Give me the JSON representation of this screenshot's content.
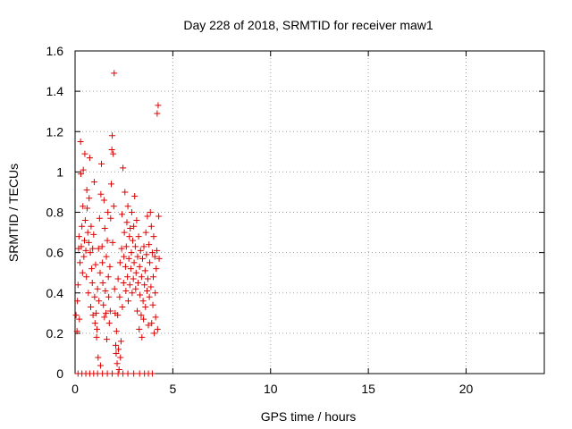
{
  "chart_data": {
    "type": "scatter",
    "title": "Day 228 of 2018, SRMTID for receiver maw1",
    "xlabel": "GPS time / hours",
    "ylabel": "SRMTID / TECUs",
    "xlim": [
      0,
      24
    ],
    "ylim": [
      0,
      1.6
    ],
    "xticks": [
      0,
      5,
      10,
      15,
      20
    ],
    "xtick_labels": [
      "0",
      "5",
      "10",
      "15",
      "20"
    ],
    "yticks": [
      0,
      0.2,
      0.4,
      0.6,
      0.8,
      1,
      1.2,
      1.4,
      1.6
    ],
    "ytick_labels": [
      "0",
      "0.2",
      "0.4",
      "0.6",
      "0.8",
      "1",
      "1.2",
      "1.4",
      "1.6"
    ],
    "grid": true,
    "marker": "+",
    "marker_color": "#dd0000",
    "points": [
      [
        0.05,
        0.29
      ],
      [
        0.1,
        0.21
      ],
      [
        0.12,
        0.36
      ],
      [
        0.15,
        0.44
      ],
      [
        0.18,
        0.62
      ],
      [
        0.2,
        0.68
      ],
      [
        0.22,
        0.27
      ],
      [
        0.25,
        0.55
      ],
      [
        0.28,
        1.15
      ],
      [
        0.3,
        0.99
      ],
      [
        0.32,
        0.63
      ],
      [
        0.35,
        0.73
      ],
      [
        0.38,
        0.5
      ],
      [
        0.4,
        0.83
      ],
      [
        0.42,
        1.01
      ],
      [
        0.45,
        0.58
      ],
      [
        0.48,
        0.66
      ],
      [
        0.5,
        1.09
      ],
      [
        0.52,
        0.76
      ],
      [
        0.55,
        0.61
      ],
      [
        0.58,
        0.48
      ],
      [
        0.6,
        0.91
      ],
      [
        0.62,
        0.82
      ],
      [
        0.65,
        0.7
      ],
      [
        0.68,
        0.4
      ],
      [
        0.7,
        0.65
      ],
      [
        0.72,
        0.87
      ],
      [
        0.75,
        1.07
      ],
      [
        0.78,
        0.6
      ],
      [
        0.8,
        0.33
      ],
      [
        0.82,
        0.73
      ],
      [
        0.85,
        0.52
      ],
      [
        0.88,
        0.45
      ],
      [
        0.9,
        0.62
      ],
      [
        0.92,
        0.29
      ],
      [
        0.95,
        0.69
      ],
      [
        0.98,
        0.95
      ],
      [
        1.0,
        0.38
      ],
      [
        1.02,
        0.25
      ],
      [
        1.05,
        0.54
      ],
      [
        1.08,
        0.3
      ],
      [
        1.1,
        0.18
      ],
      [
        1.12,
        0.22
      ],
      [
        1.15,
        0.42
      ],
      [
        1.18,
        0.08
      ],
      [
        1.2,
        0.62
      ],
      [
        1.22,
        0.36
      ],
      [
        1.25,
        0.77
      ],
      [
        1.28,
        0.5
      ],
      [
        1.3,
        0.04
      ],
      [
        1.32,
        0.89
      ],
      [
        1.35,
        1.04
      ],
      [
        1.38,
        0.63
      ],
      [
        1.4,
        0.55
      ],
      [
        1.42,
        0.45
      ],
      [
        1.45,
        0.34
      ],
      [
        1.48,
        0.86
      ],
      [
        1.5,
        0.28
      ],
      [
        1.52,
        0.72
      ],
      [
        1.55,
        0.41
      ],
      [
        1.58,
        0.3
      ],
      [
        1.6,
        0.58
      ],
      [
        1.62,
        0.17
      ],
      [
        1.65,
        0.66
      ],
      [
        1.68,
        0.8
      ],
      [
        1.7,
        0.48
      ],
      [
        1.72,
        0.38
      ],
      [
        1.75,
        0.25
      ],
      [
        1.78,
        0.53
      ],
      [
        1.8,
        0.31
      ],
      [
        1.82,
        0.77
      ],
      [
        1.85,
        0.94
      ],
      [
        1.88,
        1.11
      ],
      [
        1.9,
        1.18
      ],
      [
        1.92,
        0.65
      ],
      [
        1.95,
        1.09
      ],
      [
        1.98,
        0.83
      ],
      [
        2.0,
        1.49
      ],
      [
        2.02,
        0.42
      ],
      [
        2.05,
        0.3
      ],
      [
        2.08,
        0.14
      ],
      [
        2.1,
        0.1
      ],
      [
        2.12,
        0.21
      ],
      [
        2.15,
        0.05
      ],
      [
        2.18,
        0.29
      ],
      [
        2.2,
        0.47
      ],
      [
        2.22,
        0.12
      ],
      [
        2.25,
        0.02
      ],
      [
        2.28,
        0.38
      ],
      [
        2.3,
        0.55
      ],
      [
        2.32,
        0.08
      ],
      [
        2.35,
        0.16
      ],
      [
        2.38,
        0.62
      ],
      [
        2.4,
        0.79
      ],
      [
        2.42,
        0.33
      ],
      [
        2.45,
        1.02
      ],
      [
        2.48,
        0.45
      ],
      [
        2.5,
        0.58
      ],
      [
        2.52,
        0.7
      ],
      [
        2.55,
        0.9
      ],
      [
        2.58,
        0.53
      ],
      [
        2.6,
        0.41
      ],
      [
        2.62,
        0.63
      ],
      [
        2.65,
        0.75
      ],
      [
        2.68,
        0.48
      ],
      [
        2.7,
        0.83
      ],
      [
        2.72,
        0.36
      ],
      [
        2.75,
        0.57
      ],
      [
        2.78,
        0.68
      ],
      [
        2.8,
        0.44
      ],
      [
        2.82,
        0.72
      ],
      [
        2.85,
        0.52
      ],
      [
        2.88,
        0.6
      ],
      [
        2.9,
        0.8
      ],
      [
        2.92,
        0.4
      ],
      [
        2.95,
        0.66
      ],
      [
        2.98,
        0.47
      ],
      [
        3.0,
        0.73
      ],
      [
        3.02,
        0.55
      ],
      [
        3.05,
        0.88
      ],
      [
        3.08,
        0.63
      ],
      [
        3.1,
        0.42
      ],
      [
        3.12,
        0.5
      ],
      [
        3.15,
        0.76
      ],
      [
        3.18,
        0.31
      ],
      [
        3.2,
        0.58
      ],
      [
        3.22,
        0.45
      ],
      [
        3.25,
        0.68
      ],
      [
        3.28,
        0.22
      ],
      [
        3.3,
        0.53
      ],
      [
        3.32,
        0.39
      ],
      [
        3.35,
        0.61
      ],
      [
        3.38,
        0.29
      ],
      [
        3.4,
        0.48
      ],
      [
        3.42,
        0.18
      ],
      [
        3.45,
        0.57
      ],
      [
        3.48,
        0.36
      ],
      [
        3.5,
        0.27
      ],
      [
        3.52,
        0.63
      ],
      [
        3.55,
        0.44
      ],
      [
        3.58,
        0.51
      ],
      [
        3.6,
        0.33
      ],
      [
        3.62,
        0.7
      ],
      [
        3.65,
        0.59
      ],
      [
        3.68,
        0.41
      ],
      [
        3.7,
        0.78
      ],
      [
        3.72,
        0.47
      ],
      [
        3.75,
        0.24
      ],
      [
        3.78,
        0.64
      ],
      [
        3.8,
        0.38
      ],
      [
        3.82,
        0.55
      ],
      [
        3.85,
        0.8
      ],
      [
        3.88,
        0.43
      ],
      [
        3.9,
        0.73
      ],
      [
        3.92,
        0.25
      ],
      [
        3.95,
        0.6
      ],
      [
        3.98,
        0.34
      ],
      [
        4.0,
        0.48
      ],
      [
        4.02,
        0.68
      ],
      [
        4.05,
        0.2
      ],
      [
        4.08,
        0.58
      ],
      [
        4.1,
        0.4
      ],
      [
        4.12,
        0.28
      ],
      [
        4.15,
        0.52
      ],
      [
        4.18,
        0.61
      ],
      [
        4.2,
        1.29
      ],
      [
        4.22,
        0.22
      ],
      [
        4.25,
        1.33
      ],
      [
        4.28,
        0.78
      ],
      [
        4.3,
        0.57
      ],
      [
        0.15,
        0.0
      ],
      [
        0.35,
        0.0
      ],
      [
        0.55,
        0.0
      ],
      [
        0.75,
        0.0
      ],
      [
        0.95,
        0.0
      ],
      [
        1.15,
        0.0
      ],
      [
        1.4,
        0.0
      ],
      [
        1.65,
        0.0
      ],
      [
        1.9,
        0.0
      ],
      [
        2.2,
        0.0
      ],
      [
        2.45,
        0.0
      ],
      [
        2.7,
        0.0
      ],
      [
        3.0,
        0.0
      ],
      [
        3.3,
        0.0
      ],
      [
        3.55,
        0.0
      ],
      [
        3.75,
        0.0
      ],
      [
        3.95,
        0.0
      ]
    ]
  }
}
